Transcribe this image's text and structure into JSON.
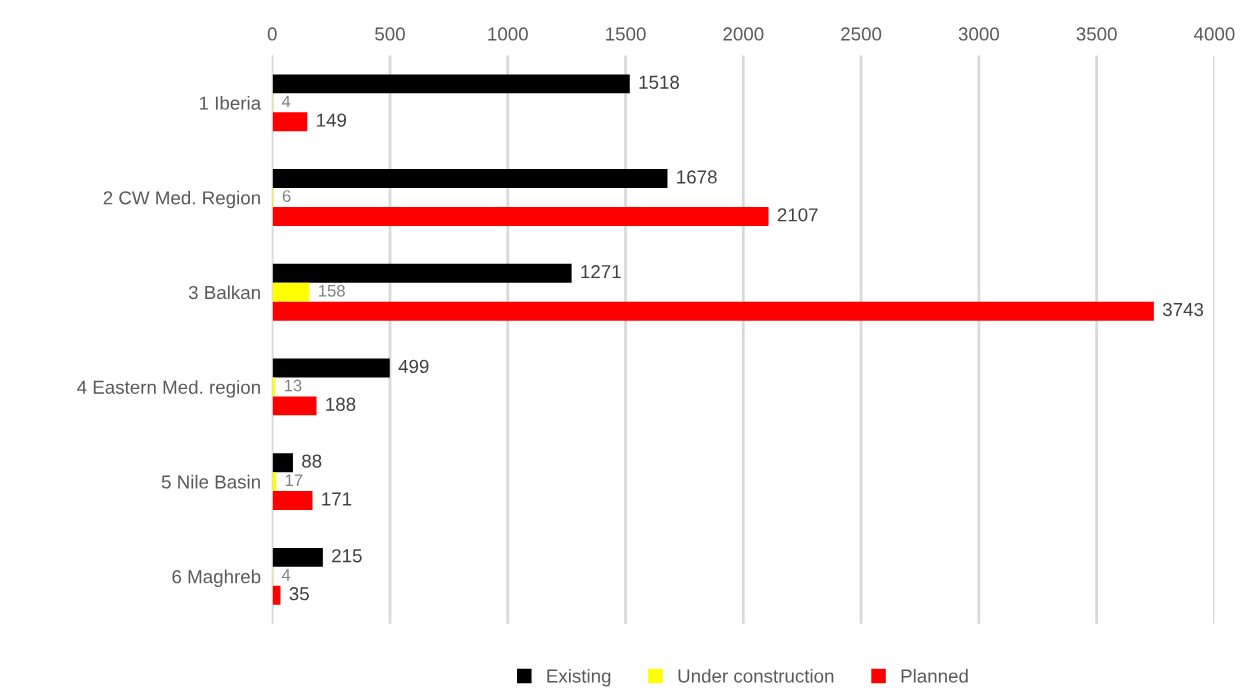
{
  "chart_data": {
    "type": "bar",
    "orientation": "horizontal",
    "categories": [
      "1 Iberia",
      "2 CW Med. Region",
      "3 Balkan",
      "4 Eastern Med. region",
      "5 Nile Basin",
      "6 Maghreb"
    ],
    "series": [
      {
        "name": "Existing",
        "color": "#000000",
        "values": [
          1518,
          1678,
          1271,
          499,
          88,
          215
        ]
      },
      {
        "name": "Under construction",
        "color": "#ffff00",
        "values": [
          4,
          6,
          158,
          13,
          17,
          4
        ]
      },
      {
        "name": "Planned",
        "color": "#ff0000",
        "values": [
          149,
          2107,
          3743,
          188,
          171,
          35
        ]
      }
    ],
    "xlim": [
      0,
      4000
    ],
    "xticks": [
      0,
      500,
      1000,
      1500,
      2000,
      2500,
      3000,
      3500,
      4000
    ],
    "grid": "x",
    "legend": "bottom",
    "data_labels": true
  }
}
